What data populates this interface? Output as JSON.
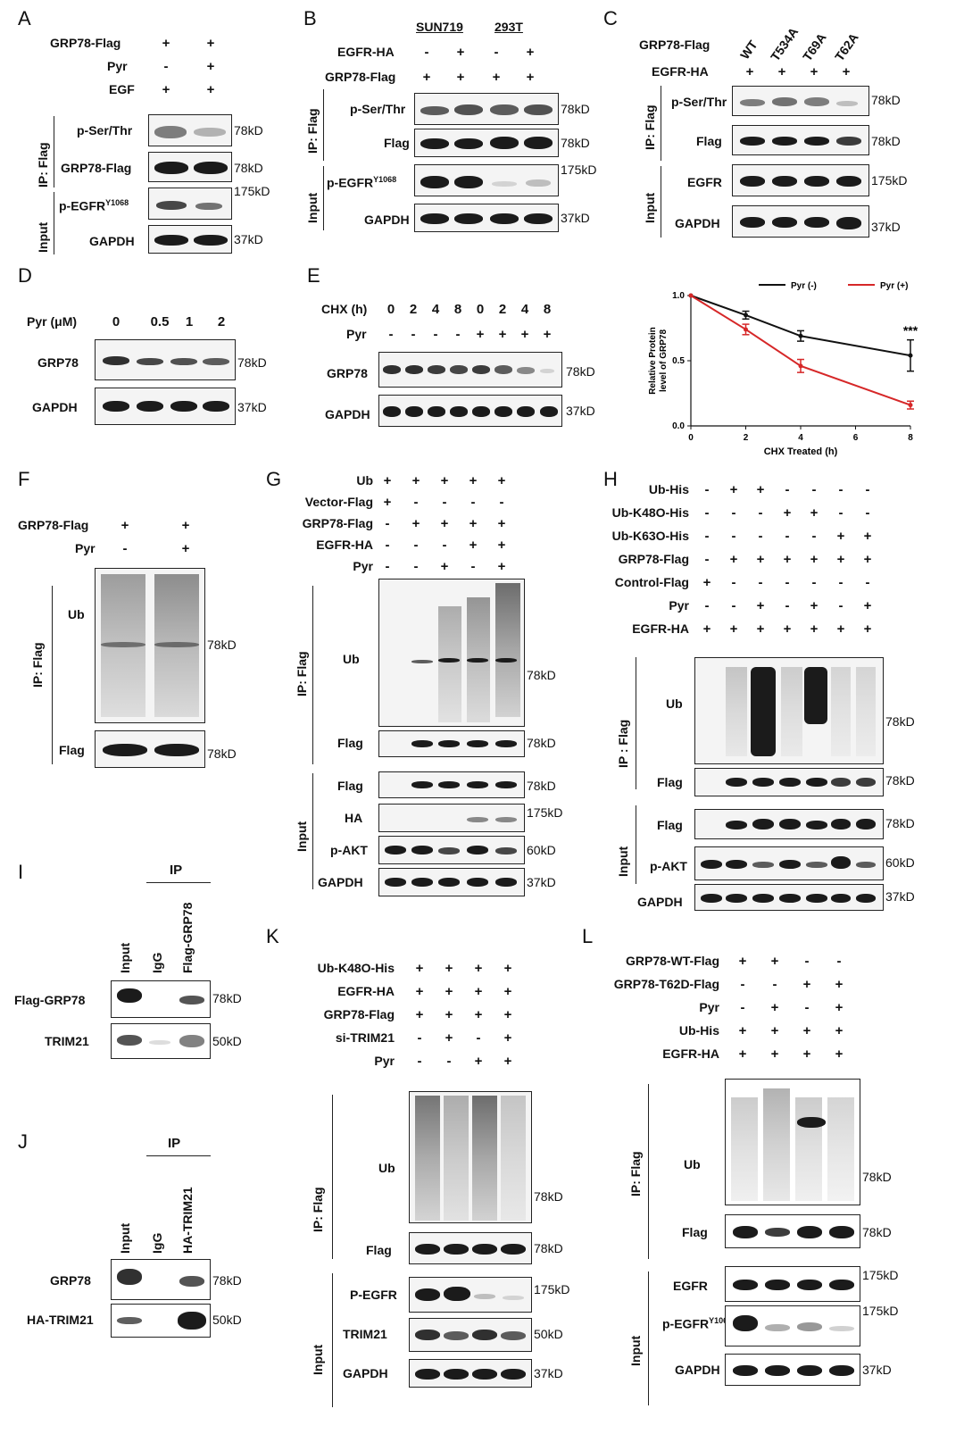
{
  "panels": {
    "A": {
      "letter": "A",
      "conditions": [
        {
          "label": "GRP78-Flag",
          "values": [
            "+",
            "+"
          ]
        },
        {
          "label": "Pyr",
          "values": [
            "-",
            "+"
          ]
        },
        {
          "label": "EGF",
          "values": [
            "+",
            "+"
          ]
        }
      ],
      "group_ip": "IP: Flag",
      "group_input": "Input",
      "blots": [
        {
          "label": "p-Ser/Thr",
          "mw": "78kD"
        },
        {
          "label": "GRP78-Flag",
          "mw": "78kD"
        },
        {
          "label": "p-EGFR",
          "sup": "Y1068",
          "mw": "175kD"
        },
        {
          "label": "GAPDH",
          "mw": "37kD"
        }
      ]
    },
    "B": {
      "letter": "B",
      "cell_lines": [
        "SUN719",
        "293T"
      ],
      "conditions": [
        {
          "label": "EGFR-HA",
          "values": [
            "-",
            "+",
            "-",
            "+"
          ]
        },
        {
          "label": "GRP78-Flag",
          "values": [
            "+",
            "+",
            "+",
            "+"
          ]
        }
      ],
      "group_ip": "IP: Flag",
      "group_input": "Input",
      "blots": [
        {
          "label": "p-Ser/Thr",
          "mw": "78kD"
        },
        {
          "label": "Flag",
          "mw": "78kD"
        },
        {
          "label": "p-EGFR",
          "sup": "Y1068",
          "mw": "175kD"
        },
        {
          "label": "GAPDH",
          "mw": "37kD"
        }
      ]
    },
    "C": {
      "letter": "C",
      "row1_label": "GRP78-Flag",
      "mutants": [
        "WT",
        "T534A",
        "T69A",
        "T62A"
      ],
      "conditions": [
        {
          "label": "EGFR-HA",
          "values": [
            "+",
            "+",
            "+",
            "+"
          ]
        }
      ],
      "group_ip": "IP: Flag",
      "group_input": "Input",
      "blots": [
        {
          "label": "p-Ser/Thr",
          "mw": "78kD"
        },
        {
          "label": "Flag",
          "mw": "78kD"
        },
        {
          "label": "EGFR",
          "mw": "175kD"
        },
        {
          "label": "GAPDH",
          "mw": "37kD"
        }
      ]
    },
    "D": {
      "letter": "D",
      "row_label": "Pyr (μM)",
      "doses": [
        "0",
        "0.5",
        "1",
        "2"
      ],
      "blots": [
        {
          "label": "GRP78",
          "mw": "78kD"
        },
        {
          "label": "GAPDH",
          "mw": "37kD"
        }
      ]
    },
    "E": {
      "letter": "E",
      "conditions": [
        {
          "label": "CHX (h)",
          "values": [
            "0",
            "2",
            "4",
            "8",
            "0",
            "2",
            "4",
            "8"
          ]
        },
        {
          "label": "Pyr",
          "values": [
            "-",
            "-",
            "-",
            "-",
            "+",
            "+",
            "+",
            "+"
          ]
        }
      ],
      "blots": [
        {
          "label": "GRP78",
          "mw": "78kD"
        },
        {
          "label": "GAPDH",
          "mw": "37kD"
        }
      ],
      "significance": "***"
    },
    "F": {
      "letter": "F",
      "conditions": [
        {
          "label": "GRP78-Flag",
          "values": [
            "+",
            "+"
          ]
        },
        {
          "label": "Pyr",
          "values": [
            "-",
            "+"
          ]
        }
      ],
      "group_ip": "IP: Flag",
      "blots": [
        {
          "label": "Ub",
          "mw": "78kD"
        },
        {
          "label": "Flag",
          "mw": "78kD"
        }
      ]
    },
    "G": {
      "letter": "G",
      "conditions": [
        {
          "label": "Ub",
          "values": [
            "+",
            "+",
            "+",
            "+",
            "+"
          ]
        },
        {
          "label": "Vector-Flag",
          "values": [
            "+",
            "-",
            "-",
            "-",
            "-"
          ]
        },
        {
          "label": "GRP78-Flag",
          "values": [
            "-",
            "+",
            "+",
            "+",
            "+"
          ]
        },
        {
          "label": "EGFR-HA",
          "values": [
            "-",
            "-",
            "-",
            "+",
            "+"
          ]
        },
        {
          "label": "Pyr",
          "values": [
            "-",
            "-",
            "+",
            "-",
            "+"
          ]
        }
      ],
      "group_ip": "IP: Flag",
      "group_input": "Input",
      "blots": [
        {
          "label": "Ub",
          "mw": "78kD"
        },
        {
          "label": "Flag",
          "mw": "78kD"
        },
        {
          "label": "Flag",
          "mw": "78kD"
        },
        {
          "label": "HA",
          "mw": "175kD"
        },
        {
          "label": "p-AKT",
          "mw": "60kD"
        },
        {
          "label": "GAPDH",
          "mw": "37kD"
        }
      ]
    },
    "H": {
      "letter": "H",
      "conditions": [
        {
          "label": "Ub-His",
          "values": [
            "-",
            "+",
            "+",
            "-",
            "-",
            "-",
            "-"
          ]
        },
        {
          "label": "Ub-K48O-His",
          "values": [
            "-",
            "-",
            "-",
            "+",
            "+",
            "-",
            "-"
          ]
        },
        {
          "label": "Ub-K63O-His",
          "values": [
            "-",
            "-",
            "-",
            "-",
            "-",
            "+",
            "+"
          ]
        },
        {
          "label": "GRP78-Flag",
          "values": [
            "-",
            "+",
            "+",
            "+",
            "+",
            "+",
            "+"
          ]
        },
        {
          "label": "Control-Flag",
          "values": [
            "+",
            "-",
            "-",
            "-",
            "-",
            "-",
            "-"
          ]
        },
        {
          "label": "Pyr",
          "values": [
            "-",
            "-",
            "+",
            "-",
            "+",
            "-",
            "+"
          ]
        },
        {
          "label": "EGFR-HA",
          "values": [
            "+",
            "+",
            "+",
            "+",
            "+",
            "+",
            "+"
          ]
        }
      ],
      "group_ip": "IP : Flag",
      "group_input": "Input",
      "blots": [
        {
          "label": "Ub",
          "mw": "78kD"
        },
        {
          "label": "Flag",
          "mw": "78kD"
        },
        {
          "label": "Flag",
          "mw": "78kD"
        },
        {
          "label": "p-AKT",
          "mw": "60kD"
        },
        {
          "label": "GAPDH",
          "mw": "37kD"
        }
      ]
    },
    "I": {
      "letter": "I",
      "ip_header": "IP",
      "lanes": [
        "Input",
        "IgG",
        "Flag-GRP78"
      ],
      "blots": [
        {
          "label": "Flag-GRP78",
          "mw": "78kD"
        },
        {
          "label": "TRIM21",
          "mw": "50kD"
        }
      ]
    },
    "J": {
      "letter": "J",
      "ip_header": "IP",
      "lanes": [
        "Input",
        "IgG",
        "HA-TRIM21"
      ],
      "blots": [
        {
          "label": "GRP78",
          "mw": "78kD"
        },
        {
          "label": "HA-TRIM21",
          "mw": "50kD"
        }
      ]
    },
    "K": {
      "letter": "K",
      "conditions": [
        {
          "label": "Ub-K48O-His",
          "values": [
            "+",
            "+",
            "+",
            "+"
          ]
        },
        {
          "label": "EGFR-HA",
          "values": [
            "+",
            "+",
            "+",
            "+"
          ]
        },
        {
          "label": "GRP78-Flag",
          "values": [
            "+",
            "+",
            "+",
            "+"
          ]
        },
        {
          "label": "si-TRIM21",
          "values": [
            "-",
            "+",
            "-",
            "+"
          ]
        },
        {
          "label": "Pyr",
          "values": [
            "-",
            "-",
            "+",
            "+"
          ]
        }
      ],
      "group_ip": "IP: Flag",
      "group_input": "Input",
      "blots": [
        {
          "label": "Ub",
          "mw": "78kD"
        },
        {
          "label": "Flag",
          "mw": "78kD"
        },
        {
          "label": "P-EGFR",
          "mw": "175kD"
        },
        {
          "label": "TRIM21",
          "mw": "50kD"
        },
        {
          "label": "GAPDH",
          "mw": "37kD"
        }
      ]
    },
    "L": {
      "letter": "L",
      "conditions": [
        {
          "label": "GRP78-WT-Flag",
          "values": [
            "+",
            "+",
            "-",
            "-"
          ]
        },
        {
          "label": "GRP78-T62D-Flag",
          "values": [
            "-",
            "-",
            "+",
            "+"
          ]
        },
        {
          "label": "Pyr",
          "values": [
            "-",
            "+",
            "-",
            "+"
          ]
        },
        {
          "label": "Ub-His",
          "values": [
            "+",
            "+",
            "+",
            "+"
          ]
        },
        {
          "label": "EGFR-HA",
          "values": [
            "+",
            "+",
            "+",
            "+"
          ]
        }
      ],
      "group_ip": "IP: Flag",
      "group_input": "Input",
      "blots": [
        {
          "label": "Ub",
          "mw": "78kD"
        },
        {
          "label": "Flag",
          "mw": "78kD"
        },
        {
          "label": "EGFR",
          "mw": "175kD"
        },
        {
          "label": "p-EGFR",
          "sup": "Y1068",
          "mw": "175kD"
        },
        {
          "label": "GAPDH",
          "mw": "37kD"
        }
      ]
    }
  },
  "chart_data": {
    "type": "line",
    "title": "",
    "xlabel": "CHX Treated (h)",
    "ylabel": "Relative Protein level of GRP78",
    "x": [
      0,
      2,
      4,
      8
    ],
    "xlim": [
      0,
      8
    ],
    "ylim": [
      0,
      1.0
    ],
    "xticks": [
      "0",
      "2",
      "4",
      "6",
      "8"
    ],
    "yticks": [
      "0.0",
      "0.5",
      "1.0"
    ],
    "legend_position": "top",
    "series": [
      {
        "name": "Pyr (-)",
        "color": "#111111",
        "values": [
          1.0,
          0.85,
          0.69,
          0.54
        ],
        "errors": [
          0,
          0.03,
          0.04,
          0.12
        ]
      },
      {
        "name": "Pyr (+)",
        "color": "#d62728",
        "values": [
          1.0,
          0.74,
          0.46,
          0.16
        ],
        "errors": [
          0,
          0.04,
          0.05,
          0.03
        ]
      }
    ],
    "annotation": "***"
  }
}
